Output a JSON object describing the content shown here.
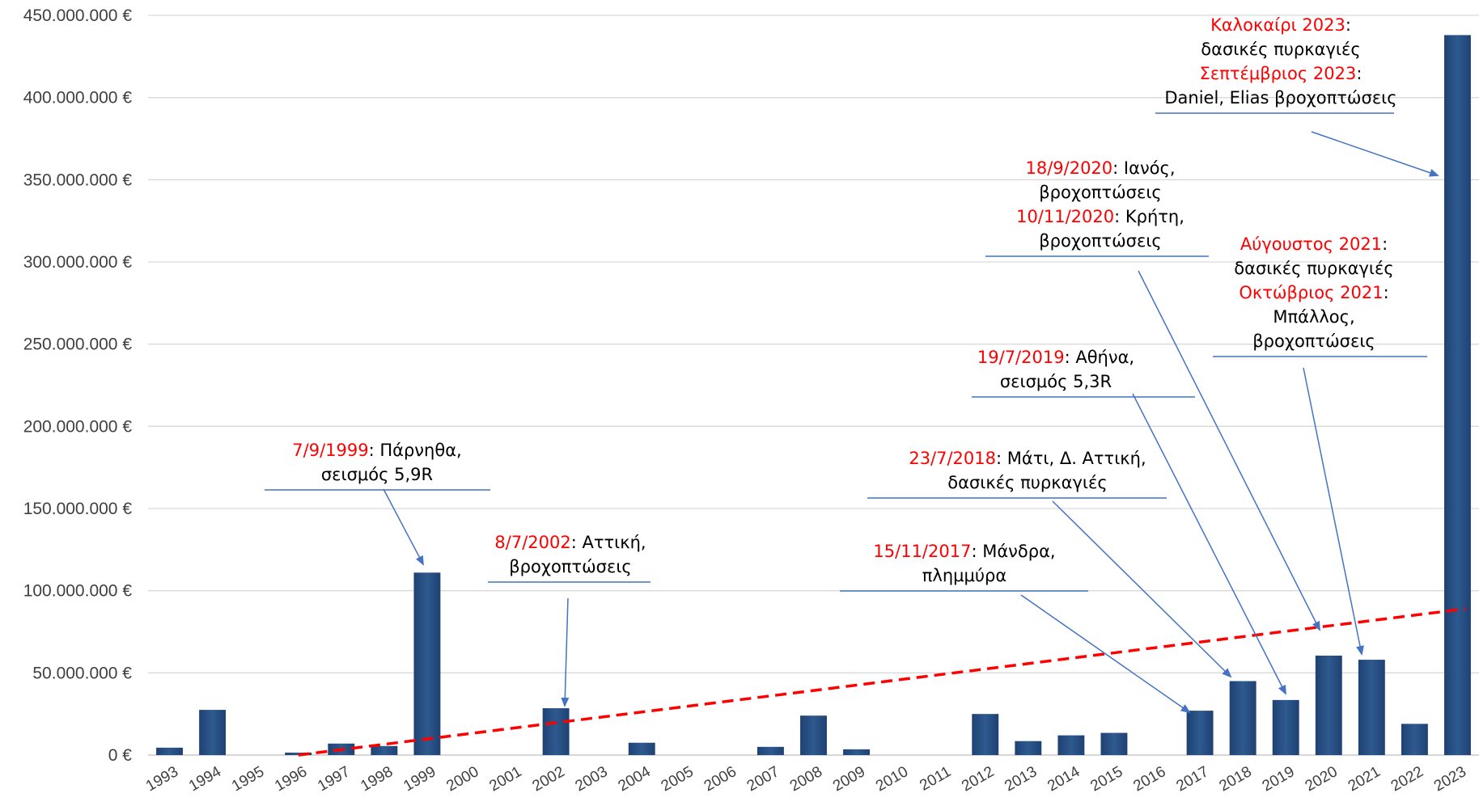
{
  "chart_data": {
    "type": "bar",
    "categories": [
      "1993",
      "1994",
      "1995",
      "1996",
      "1997",
      "1998",
      "1999",
      "2000",
      "2001",
      "2002",
      "2003",
      "2004",
      "2005",
      "2006",
      "2007",
      "2008",
      "2009",
      "2010",
      "2011",
      "2012",
      "2013",
      "2014",
      "2015",
      "2016",
      "2017",
      "2018",
      "2019",
      "2020",
      "2021",
      "2022",
      "2023"
    ],
    "values": [
      4500000,
      27500000,
      0,
      1500000,
      7000000,
      5500000,
      111000000,
      0,
      0,
      28500000,
      0,
      7500000,
      0,
      0,
      5000000,
      24000000,
      3500000,
      0,
      0,
      25000000,
      8500000,
      12000000,
      13500000,
      0,
      27000000,
      45000000,
      33500000,
      60500000,
      58000000,
      19000000,
      438000000
    ],
    "ylim": [
      0,
      450000000
    ],
    "y_ticks": [
      "0 €",
      "50.000.000 €",
      "100.000.000 €",
      "150.000.000 €",
      "200.000.000 €",
      "250.000.000 €",
      "300.000.000 €",
      "350.000.000 €",
      "400.000.000 €",
      "450.000.000 €"
    ],
    "grid": true,
    "legend": "none",
    "trendline": {
      "style": "dashed",
      "color": "#ff0000",
      "start": [
        1996,
        0
      ],
      "end": [
        2023,
        89000000
      ]
    },
    "bar_color": "#2e5a8f",
    "annotations": [
      {
        "lines": [
          {
            "red": "7/9/1999",
            "black": ": Πάρνηθα,"
          },
          {
            "red": "",
            "black": "σεισμός 5,9R"
          }
        ],
        "target": "1999"
      },
      {
        "lines": [
          {
            "red": "8/7/2002",
            "black": ": Αττική,"
          },
          {
            "red": "",
            "black": "βροχοπτώσεις"
          }
        ],
        "target": "2002"
      },
      {
        "lines": [
          {
            "red": "15/11/2017",
            "black": ": Μάνδρα,"
          },
          {
            "red": "",
            "black": "πλημμύρα"
          }
        ],
        "target": "2017"
      },
      {
        "lines": [
          {
            "red": "23/7/2018",
            "black": ": Μάτι, Δ. Αττική,"
          },
          {
            "red": "",
            "black": "δασικές πυρκαγιές"
          }
        ],
        "target": "2018"
      },
      {
        "lines": [
          {
            "red": "19/7/2019",
            "black": ": Αθήνα,"
          },
          {
            "red": "",
            "black": "σεισμός 5,3R"
          }
        ],
        "target": "2019"
      },
      {
        "lines": [
          {
            "red": "18/9/2020",
            "black": ": Ιανός,"
          },
          {
            "red": "",
            "black": "βροχοπτώσεις"
          },
          {
            "red": "10/11/2020",
            "black": ": Κρήτη,"
          },
          {
            "red": "",
            "black": "βροχοπτώσεις"
          }
        ],
        "target": "2020"
      },
      {
        "lines": [
          {
            "red": "Αύγουστος 2021",
            "black": ":"
          },
          {
            "red": "",
            "black": "δασικές πυρκαγιές"
          },
          {
            "red": "Οκτώβριος 2021",
            "black": ":"
          },
          {
            "red": "",
            "black": "Μπάλλος,"
          },
          {
            "red": "",
            "black": "βροχοπτώσεις"
          }
        ],
        "target": "2021"
      },
      {
        "lines": [
          {
            "red": "Καλοκαίρι 2023",
            "black": ":"
          },
          {
            "red": "",
            "black": "δασικές πυρκαγιές"
          },
          {
            "red": "Σεπτέμβριος 2023",
            "black": ":"
          },
          {
            "red": "",
            "black": "Daniel, Elias βροχοπτώσεις"
          }
        ],
        "target": "2023"
      }
    ]
  }
}
